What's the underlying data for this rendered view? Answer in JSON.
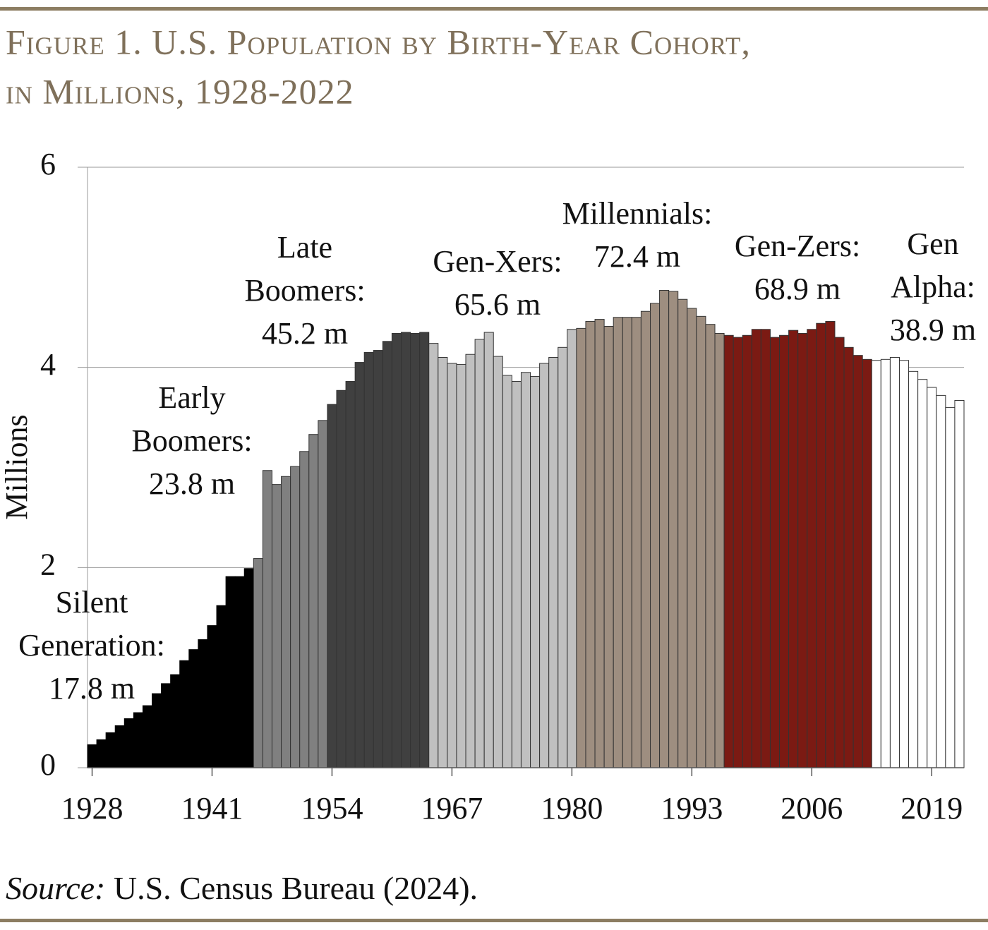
{
  "chart_data": {
    "type": "bar",
    "title": [
      "Figure 1. U.S. Population by Birth-Year Cohort,",
      "in Millions, 1928-2022"
    ],
    "y_label": "Millions",
    "source_label": "Source:",
    "source": "U.S. Census Bureau (2024).",
    "xlim": [
      1927.5,
      2022.5
    ],
    "xticks": [
      1928,
      1941,
      1954,
      1967,
      1980,
      1993,
      2006,
      2019
    ],
    "ylim": [
      0,
      6
    ],
    "yticks": [
      0,
      2,
      4,
      6
    ],
    "grid": true,
    "series": [
      {
        "name": "Silent Generation",
        "color": "#000000",
        "annotation": [
          "Silent",
          "Generation:",
          "17.8 m"
        ],
        "x": [
          1928,
          1929,
          1930,
          1931,
          1932,
          1933,
          1934,
          1935,
          1936,
          1937,
          1938,
          1939,
          1940,
          1941,
          1942,
          1943,
          1944,
          1945
        ],
        "values": [
          0.23,
          0.28,
          0.35,
          0.42,
          0.49,
          0.55,
          0.62,
          0.74,
          0.84,
          0.93,
          1.07,
          1.18,
          1.28,
          1.42,
          1.62,
          1.91,
          1.91,
          1.99
        ]
      },
      {
        "name": "Early Boomers",
        "color": "#808080",
        "annotation": [
          "Early",
          "Boomers:",
          "23.8 m"
        ],
        "x": [
          1946,
          1947,
          1948,
          1949,
          1950,
          1951,
          1952,
          1953
        ],
        "values": [
          2.09,
          2.97,
          2.83,
          2.91,
          3.01,
          3.16,
          3.33,
          3.47
        ]
      },
      {
        "name": "Late Boomers",
        "color": "#404040",
        "annotation": [
          "Late",
          "Boomers:",
          "45.2 m"
        ],
        "x": [
          1954,
          1955,
          1956,
          1957,
          1958,
          1959,
          1960,
          1961,
          1962,
          1963,
          1964
        ],
        "values": [
          3.63,
          3.77,
          3.86,
          4.05,
          4.15,
          4.17,
          4.26,
          4.34,
          4.35,
          4.34,
          4.35
        ]
      },
      {
        "name": "Gen-Xers",
        "color": "#c0c0c0",
        "annotation": [
          "Gen-Xers:",
          "65.6 m"
        ],
        "x": [
          1965,
          1966,
          1967,
          1968,
          1969,
          1970,
          1971,
          1972,
          1973,
          1974,
          1975,
          1976,
          1977,
          1978,
          1979,
          1980
        ],
        "values": [
          4.24,
          4.1,
          4.04,
          4.03,
          4.13,
          4.28,
          4.35,
          4.11,
          3.92,
          3.86,
          3.95,
          3.91,
          4.04,
          4.1,
          4.2,
          4.38
        ]
      },
      {
        "name": "Millennials",
        "color": "#9e8e80",
        "annotation": [
          "Millennials:",
          "72.4 m"
        ],
        "x": [
          1981,
          1982,
          1983,
          1984,
          1985,
          1986,
          1987,
          1988,
          1989,
          1990,
          1991,
          1992,
          1993,
          1994,
          1995,
          1996
        ],
        "values": [
          4.39,
          4.46,
          4.48,
          4.41,
          4.5,
          4.5,
          4.5,
          4.56,
          4.64,
          4.77,
          4.76,
          4.68,
          4.59,
          4.51,
          4.43,
          4.34
        ]
      },
      {
        "name": "Gen-Zers",
        "color": "#7b1a13",
        "annotation": [
          "Gen-Zers:",
          "68.9 m"
        ],
        "x": [
          1997,
          1998,
          1999,
          2000,
          2001,
          2002,
          2003,
          2004,
          2005,
          2006,
          2007,
          2008,
          2009,
          2010,
          2011,
          2012
        ],
        "values": [
          4.32,
          4.3,
          4.32,
          4.38,
          4.38,
          4.3,
          4.32,
          4.37,
          4.34,
          4.38,
          4.44,
          4.46,
          4.3,
          4.2,
          4.12,
          4.08
        ]
      },
      {
        "name": "Gen Alpha",
        "color": "#ffffff",
        "annotation": [
          "Gen",
          "Alpha:",
          "38.9 m"
        ],
        "x": [
          2013,
          2014,
          2015,
          2016,
          2017,
          2018,
          2019,
          2020,
          2021,
          2022
        ],
        "values": [
          4.07,
          4.08,
          4.1,
          4.07,
          3.96,
          3.88,
          3.8,
          3.72,
          3.6,
          3.67
        ]
      }
    ]
  }
}
